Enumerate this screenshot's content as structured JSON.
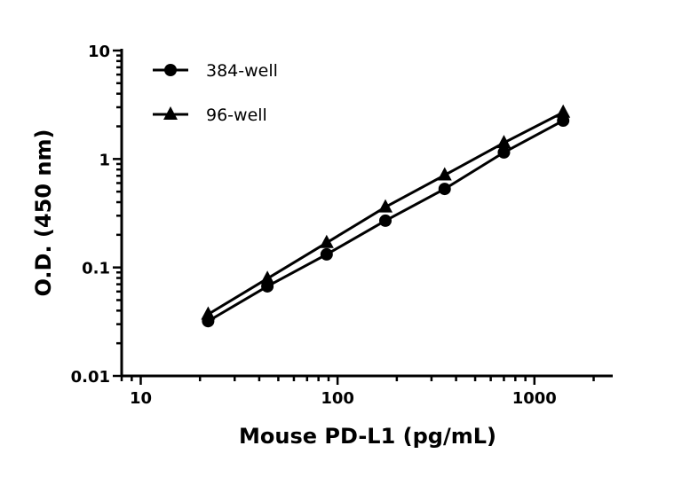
{
  "chart_data": {
    "type": "line",
    "xlabel": "Mouse PD-L1 (pg/mL)",
    "ylabel": "O.D. (450 nm)",
    "xscale": "log",
    "yscale": "log",
    "xlim": [
      8,
      2500
    ],
    "ylim": [
      0.01,
      10
    ],
    "xticks": [
      {
        "value": 10,
        "label": "10"
      },
      {
        "value": 100,
        "label": "100"
      },
      {
        "value": 1000,
        "label": "1000"
      }
    ],
    "yticks": [
      {
        "value": 0.01,
        "label": "0.01"
      },
      {
        "value": 0.1,
        "label": "0.1"
      },
      {
        "value": 1,
        "label": "1"
      },
      {
        "value": 10,
        "label": "10"
      }
    ],
    "grid": false,
    "legend": "top-left",
    "x": [
      22,
      44,
      88,
      175,
      350,
      700,
      1400
    ],
    "series": [
      {
        "name": "384-well",
        "marker": "circle",
        "color": "#000000",
        "values": [
          0.032,
          0.067,
          0.132,
          0.27,
          0.53,
          1.15,
          2.26
        ]
      },
      {
        "name": "96-well",
        "marker": "triangle",
        "color": "#000000",
        "values": [
          0.037,
          0.079,
          0.169,
          0.36,
          0.71,
          1.41,
          2.69
        ]
      }
    ]
  }
}
